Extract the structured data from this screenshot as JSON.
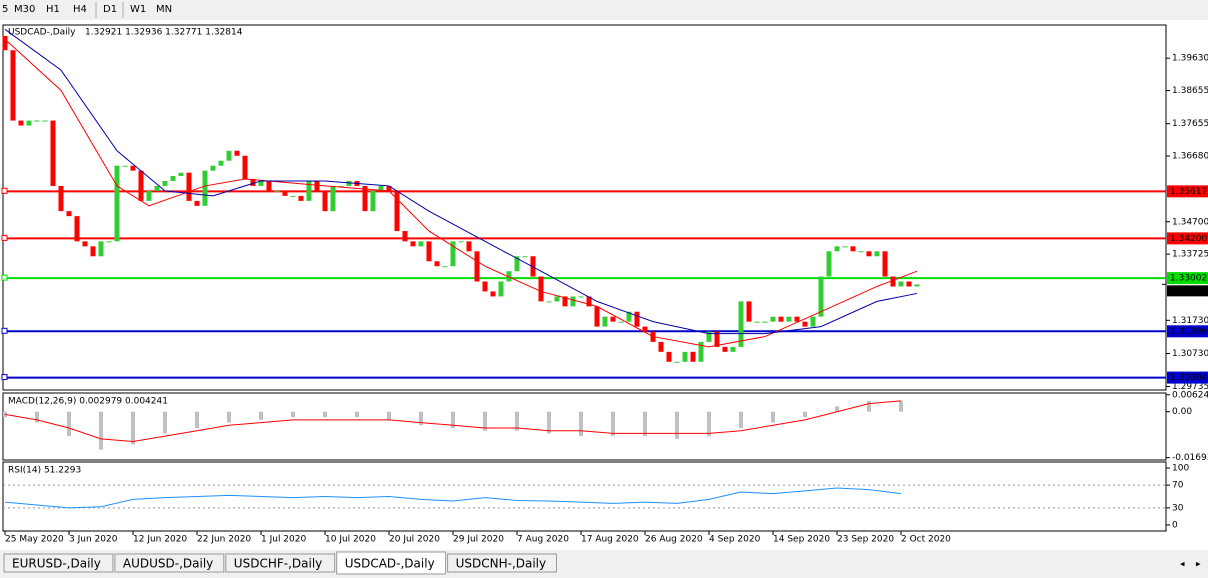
{
  "toolbar": [
    "5",
    "M30",
    "H1",
    "H4",
    "D1",
    "W1",
    "MN"
  ],
  "tabs": [
    "EURUSD-,Daily",
    "AUDUSD-,Daily",
    "USDCHF-,Daily",
    "USDCAD-,Daily",
    "USDCNH-,Daily"
  ],
  "active_tab": 3,
  "chart_data": [
    {
      "type": "candlestick",
      "title": "USDCAD-,Daily",
      "ohlc_info": "1.32921 1.32936 1.32771 1.32814",
      "up_color": "#32cd32",
      "down_color": "#ff0000",
      "open": [
        1.403,
        1.3987,
        1.3775,
        1.376,
        1.3775,
        1.3775,
        1.3775,
        1.3578,
        1.3502,
        1.3487,
        1.3411,
        1.3396,
        1.3366,
        1.3411,
        1.3411,
        1.3639,
        1.3639,
        1.3624,
        1.3533,
        1.3563,
        1.3578,
        1.3593,
        1.3608,
        1.3618,
        1.3533,
        1.3518,
        1.3624,
        1.3639,
        1.3654,
        1.3684,
        1.3669,
        1.3599,
        1.3578,
        1.3593,
        1.3563,
        1.3563,
        1.3548,
        1.3548,
        1.3533,
        1.3593,
        1.3563,
        1.3502,
        1.3578,
        1.3578,
        1.3593,
        1.3578,
        1.3502,
        1.3563,
        1.3578,
        1.3563,
        1.3442,
        1.3411,
        1.3396,
        1.3411,
        1.3351,
        1.3336,
        1.3336,
        1.3411,
        1.3411,
        1.3381,
        1.329,
        1.326,
        1.3245,
        1.329,
        1.3321,
        1.3366,
        1.3366,
        1.3305,
        1.323,
        1.323,
        1.3245,
        1.3215,
        1.3245,
        1.3245,
        1.3215,
        1.3154,
        1.3184,
        1.3169,
        1.3169,
        1.3199,
        1.3154,
        1.3139,
        1.3108,
        1.3078,
        1.3048,
        1.3048,
        1.3078,
        1.3048,
        1.3108,
        1.3139,
        1.3093,
        1.3078,
        1.3093,
        1.323,
        1.3169,
        1.3169,
        1.3169,
        1.3184,
        1.3169,
        1.3184,
        1.3169,
        1.3154,
        1.3184,
        1.3305,
        1.3381,
        1.3396,
        1.3396,
        1.3381,
        1.3381,
        1.3366,
        1.3381,
        1.3305,
        1.3275,
        1.329,
        1.3275
      ],
      "close": [
        1.3987,
        1.3775,
        1.376,
        1.3775,
        1.3775,
        1.3775,
        1.3578,
        1.3502,
        1.3487,
        1.3411,
        1.3396,
        1.3366,
        1.3411,
        1.3411,
        1.3639,
        1.3639,
        1.3624,
        1.3533,
        1.3563,
        1.3578,
        1.3593,
        1.3608,
        1.3618,
        1.3533,
        1.3518,
        1.3624,
        1.3639,
        1.3654,
        1.3684,
        1.3669,
        1.3599,
        1.3578,
        1.3593,
        1.3563,
        1.3563,
        1.3548,
        1.3548,
        1.3533,
        1.3593,
        1.3563,
        1.3502,
        1.3578,
        1.3578,
        1.3593,
        1.3578,
        1.3502,
        1.3563,
        1.3578,
        1.3563,
        1.3442,
        1.3411,
        1.3396,
        1.3411,
        1.3351,
        1.3336,
        1.3336,
        1.3411,
        1.3411,
        1.3381,
        1.329,
        1.326,
        1.3245,
        1.329,
        1.3321,
        1.3366,
        1.3366,
        1.3305,
        1.323,
        1.323,
        1.3245,
        1.3215,
        1.3245,
        1.3245,
        1.3215,
        1.3154,
        1.3184,
        1.3169,
        1.3169,
        1.3199,
        1.3154,
        1.3139,
        1.3108,
        1.3078,
        1.3048,
        1.3048,
        1.3078,
        1.3048,
        1.3108,
        1.3139,
        1.3093,
        1.3078,
        1.3093,
        1.323,
        1.3169,
        1.3169,
        1.3169,
        1.3184,
        1.3169,
        1.3184,
        1.3169,
        1.3154,
        1.3184,
        1.3305,
        1.3381,
        1.3396,
        1.3396,
        1.3381,
        1.3381,
        1.3366,
        1.3381,
        1.3305,
        1.3275,
        1.329,
        1.3275,
        1.3281
      ],
      "series": [
        {
          "color": "#ff0000",
          "x": [
            0,
            7,
            14,
            18,
            25,
            30,
            40,
            48,
            53,
            60,
            67,
            74,
            81,
            88,
            95,
            102,
            109,
            114
          ],
          "values": [
            1.402,
            1.3866,
            1.3578,
            1.3518,
            1.3578,
            1.3599,
            1.3578,
            1.3563,
            1.3442,
            1.3336,
            1.326,
            1.3215,
            1.3124,
            1.3093,
            1.3124,
            1.3199,
            1.3275,
            1.3321
          ]
        },
        {
          "color": "#0000aa",
          "x": [
            0,
            7,
            14,
            20,
            26,
            32,
            40,
            48,
            53,
            60,
            67,
            74,
            81,
            88,
            95,
            102,
            109,
            114
          ],
          "values": [
            1.405,
            1.3927,
            1.3684,
            1.3563,
            1.3548,
            1.3593,
            1.3593,
            1.3578,
            1.3502,
            1.3411,
            1.3321,
            1.323,
            1.3169,
            1.3133,
            1.3133,
            1.3154,
            1.323,
            1.3254
          ]
        }
      ],
      "levels": [
        {
          "value": 1.35617,
          "label": "1.35617",
          "color": "#ff0000"
        },
        {
          "value": 1.342,
          "label": "1.34200",
          "color": "#ff0000"
        },
        {
          "value": 1.33002,
          "label": "1.33002",
          "color": "#00dd00"
        },
        {
          "value": 1.31399,
          "label": "1.31399",
          "color": "#0000cc"
        },
        {
          "value": 1.30004,
          "label": "1.30004",
          "color": "#0000cc"
        }
      ],
      "last_price": {
        "value": 1.32814,
        "label": "1.32814"
      },
      "xlim": [
        -0.25,
        145.125
      ],
      "ylim": [
        1.2963,
        1.4063
      ],
      "yticks": [
        {
          "value": 1.3963,
          "label": "1.39630"
        },
        {
          "value": 1.38655,
          "label": "1.38655"
        },
        {
          "value": 1.37655,
          "label": "1.37655"
        },
        {
          "value": 1.3668,
          "label": "1.36680"
        },
        {
          "value": 1.347,
          "label": "1.34700"
        },
        {
          "value": 1.33725,
          "label": "1.33725"
        },
        {
          "value": 1.3173,
          "label": "1.31730"
        },
        {
          "value": 1.3073,
          "label": "1.30730"
        },
        {
          "value": 1.29735,
          "label": "1.29735"
        }
      ],
      "xticks": [
        {
          "value": 0,
          "label": "25 May 2020"
        },
        {
          "value": 8,
          "label": "3 Jun 2020"
        },
        {
          "value": 16,
          "label": "12 Jun 2020"
        },
        {
          "value": 24,
          "label": "22 Jun 2020"
        },
        {
          "value": 32,
          "label": "1 Jul 2020"
        },
        {
          "value": 40,
          "label": "10 Jul 2020"
        },
        {
          "value": 48,
          "label": "20 Jul 2020"
        },
        {
          "value": 56,
          "label": "29 Jul 2020"
        },
        {
          "value": 64,
          "label": "7 Aug 2020"
        },
        {
          "value": 72,
          "label": "17 Aug 2020"
        },
        {
          "value": 80,
          "label": "26 Aug 2020"
        },
        {
          "value": 88,
          "label": "4 Sep 2020"
        },
        {
          "value": 96,
          "label": "14 Sep 2020"
        },
        {
          "value": 104,
          "label": "23 Sep 2020"
        },
        {
          "value": 112,
          "label": "2 Oct 2020"
        }
      ]
    },
    {
      "type": "macd",
      "title": "MACD(12,26,9) 0.002979 0.004241",
      "hist_color": "#c0c0c0",
      "signal_color": "#ff0000",
      "x": [
        0,
        4,
        8,
        12,
        16,
        20,
        24,
        28,
        32,
        36,
        40,
        44,
        48,
        52,
        56,
        60,
        64,
        68,
        72,
        76,
        80,
        84,
        88,
        92,
        96,
        100,
        104,
        108,
        112
      ],
      "histogram": [
        -0.002,
        -0.004,
        -0.009,
        -0.014,
        -0.012,
        -0.008,
        -0.006,
        -0.004,
        -0.003,
        -0.002,
        -0.002,
        -0.002,
        -0.003,
        -0.005,
        -0.006,
        -0.007,
        -0.007,
        -0.008,
        -0.009,
        -0.009,
        -0.009,
        -0.01,
        -0.009,
        -0.006,
        -0.004,
        -0.002,
        0.002,
        0.004,
        0.004
      ],
      "signal": [
        -0.001,
        -0.003,
        -0.006,
        -0.01,
        -0.011,
        -0.009,
        -0.007,
        -0.005,
        -0.004,
        -0.003,
        -0.003,
        -0.003,
        -0.003,
        -0.004,
        -0.005,
        -0.006,
        -0.006,
        -0.007,
        -0.007,
        -0.008,
        -0.008,
        -0.008,
        -0.008,
        -0.007,
        -0.005,
        -0.003,
        0.0,
        0.003,
        0.004
      ],
      "xlim": [
        -0.25,
        145.125
      ],
      "ylim": [
        -0.0178,
        0.0069
      ],
      "yticks": [
        0.00624,
        {
          "value": 0,
          "label": "0.00"
        },
        -0.01693
      ]
    },
    {
      "type": "rsi",
      "title": "RSI(14) 51.2293",
      "color": "#1e90ff",
      "x": [
        0,
        4,
        8,
        12,
        16,
        20,
        24,
        28,
        32,
        36,
        40,
        44,
        48,
        52,
        56,
        60,
        64,
        68,
        72,
        76,
        80,
        84,
        88,
        92,
        96,
        100,
        104,
        108,
        112
      ],
      "values": [
        40,
        35,
        30,
        32,
        45,
        48,
        50,
        52,
        50,
        48,
        50,
        48,
        50,
        45,
        42,
        48,
        43,
        42,
        40,
        38,
        40,
        38,
        45,
        58,
        55,
        60,
        65,
        62,
        55
      ],
      "levels": [
        70,
        30
      ],
      "xlim": [
        -0.25,
        145.125
      ],
      "ylim": [
        -10.7,
        110.7
      ],
      "yticks": [
        100,
        70,
        30,
        0
      ]
    }
  ]
}
